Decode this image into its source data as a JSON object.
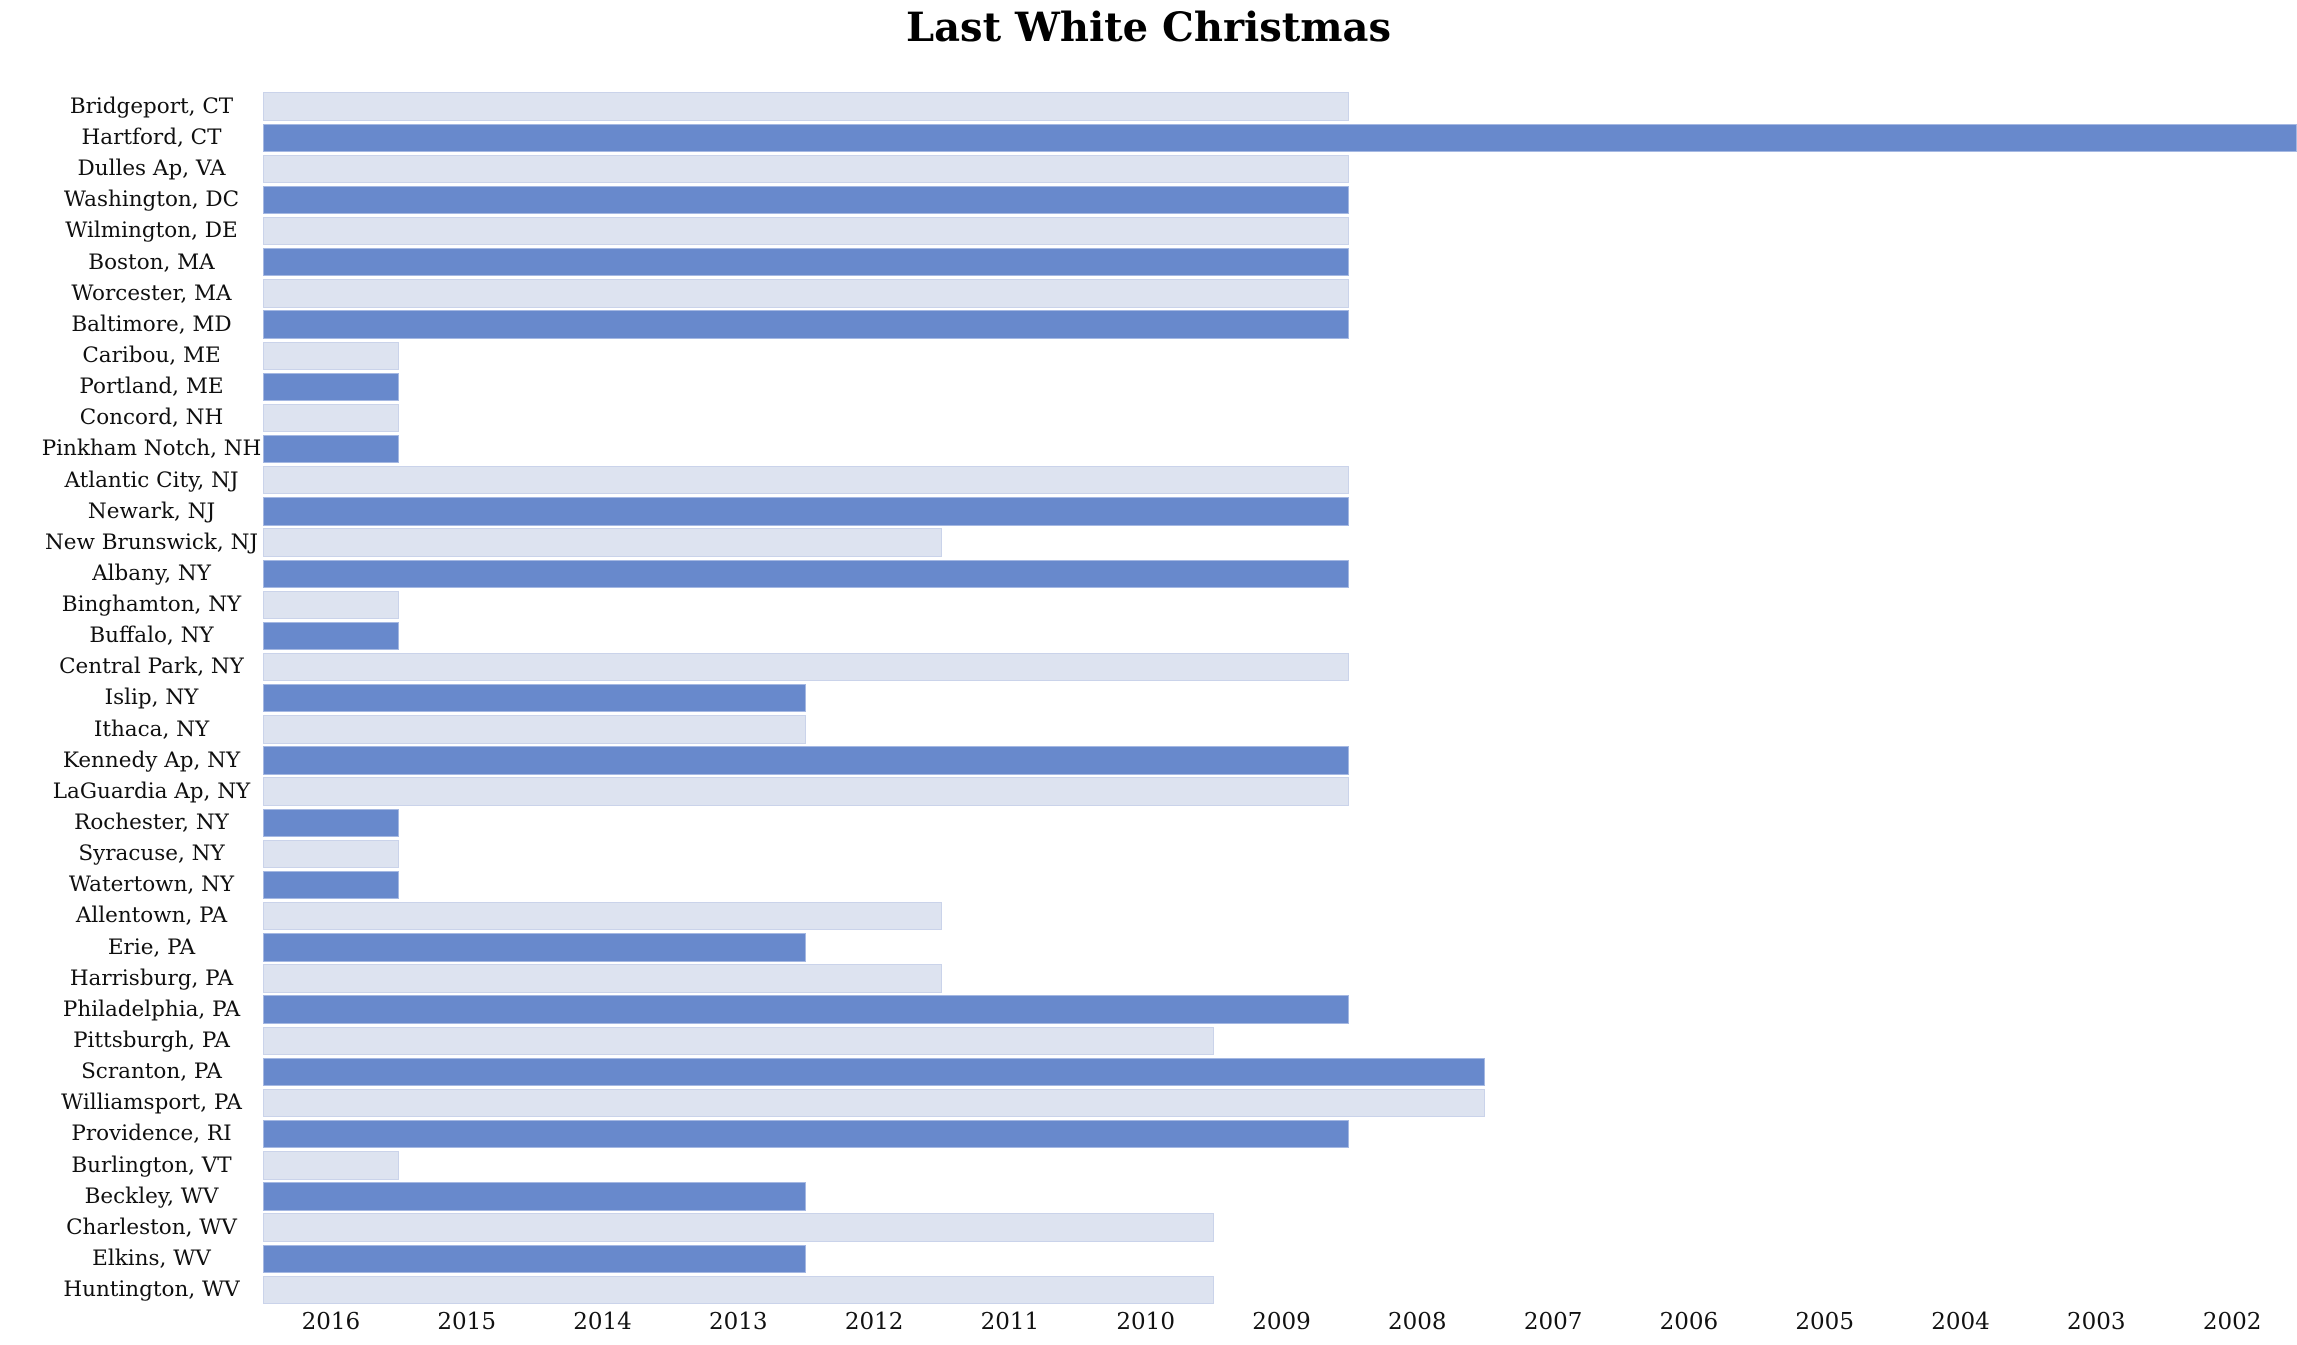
{
  "title": "Last White Christmas",
  "colors": {
    "background": "#FFFFFF",
    "title_text": "#000000",
    "label_text": "#0F0F0F",
    "bar_primary": "#6889CC",
    "bar_primary_border": "#A5B8E2",
    "bar_secondary": "#DDE3F0",
    "bar_secondary_border": "#CAD3EA"
  },
  "chart_data": {
    "type": "bar",
    "orientation": "horizontal",
    "title": "Last White Christmas",
    "xlabel": "",
    "ylabel": "",
    "grid": false,
    "legend": false,
    "x_axis_reversed": true,
    "xlim": [
      2016.5,
      2001.5
    ],
    "x_ticks": [
      "2016",
      "2015",
      "2014",
      "2013",
      "2012",
      "2011",
      "2010",
      "2009",
      "2008",
      "2007",
      "2006",
      "2005",
      "2004",
      "2003",
      "2002"
    ],
    "bar_style_note": "rows alternate light/blue stripes; each bar spans from 2016.5 down to (year - 0.5); Hartford bar is clipped at the right image edge",
    "categories": [
      "Bridgeport, CT",
      "Hartford, CT",
      "Dulles Ap, VA",
      "Washington, DC",
      "Wilmington, DE",
      "Boston, MA",
      "Worcester, MA",
      "Baltimore, MD",
      "Caribou, ME",
      "Portland, ME",
      "Concord, NH",
      "Pinkham Notch, NH",
      "Atlantic City, NJ",
      "Newark, NJ",
      "New Brunswick, NJ",
      "Albany, NY",
      "Binghamton, NY",
      "Buffalo, NY",
      "Central Park, NY",
      "Islip, NY",
      "Ithaca, NY",
      "Kennedy Ap, NY",
      "LaGuardia Ap, NY",
      "Rochester, NY",
      "Syracuse, NY",
      "Watertown, NY",
      "Allentown, PA",
      "Erie, PA",
      "Harrisburg, PA",
      "Philadelphia, PA",
      "Pittsburgh, PA",
      "Scranton, PA",
      "Williamsport, PA",
      "Providence, RI",
      "Burlington, VT",
      "Beckley, WV",
      "Charleston, WV",
      "Elkins, WV",
      "Huntington, WV"
    ],
    "values": [
      2009,
      2002,
      2009,
      2009,
      2009,
      2009,
      2009,
      2009,
      2016,
      2016,
      2016,
      2016,
      2009,
      2009,
      2012,
      2009,
      2016,
      2016,
      2009,
      2013,
      2013,
      2009,
      2009,
      2016,
      2016,
      2016,
      2012,
      2013,
      2012,
      2009,
      2010,
      2008,
      2008,
      2009,
      2016,
      2013,
      2010,
      2013,
      2010
    ]
  }
}
